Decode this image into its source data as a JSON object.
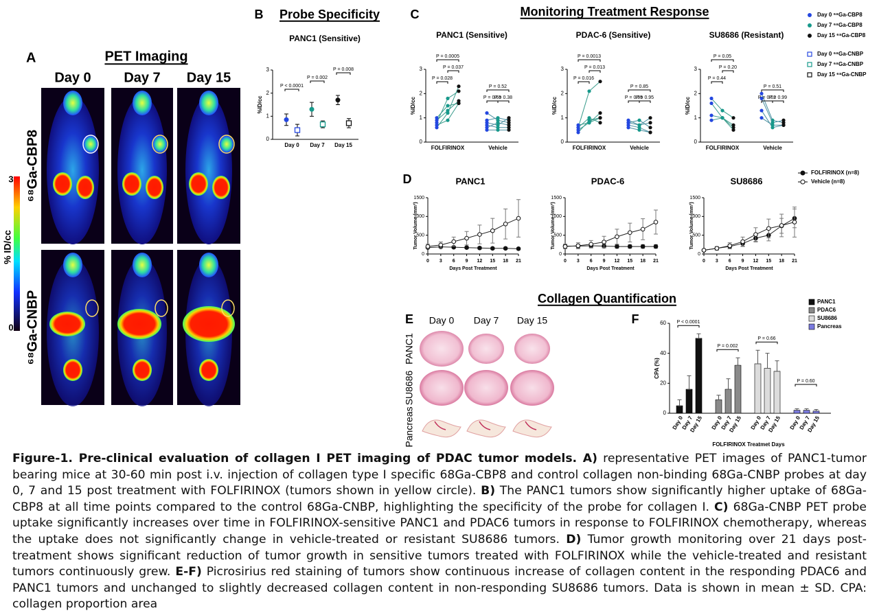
{
  "panel_a": {
    "label": "A",
    "title": "PET Imaging",
    "columns": [
      "Day 0",
      "Day 7",
      "Day 15"
    ],
    "rows": [
      "⁶⁸Ga-CBP8",
      "⁶⁸Ga-CNBP"
    ],
    "colorbar": {
      "label": "% ID/cc",
      "ticks": [
        3,
        0
      ]
    }
  },
  "panel_b": {
    "label": "B",
    "title": "Probe Specificity",
    "chart_data": {
      "type": "dot",
      "subtitle": "PANC1 (Sensitive)",
      "y_label": "%ID/cc",
      "categories": [
        "Day 0",
        "Day 7",
        "Day 15"
      ],
      "colors": [
        "#2447e0",
        "#17998b",
        "#111111"
      ],
      "ylim": [
        0,
        3
      ],
      "yticks": [
        0,
        1,
        2,
        3
      ],
      "series": [
        {
          "marker": "circle",
          "values": [
            0.85,
            1.3,
            1.7
          ],
          "errors": [
            0.25,
            0.3,
            0.2
          ]
        },
        {
          "marker": "square",
          "values": [
            0.4,
            0.65,
            0.7
          ],
          "errors": [
            0.25,
            0.15,
            0.2
          ]
        }
      ],
      "annotations": [
        "P < 0.0001",
        "P = 0.002",
        "P = 0.008"
      ]
    }
  },
  "panel_c": {
    "label": "C",
    "title": "Monitoring Treatment Response",
    "legend": [
      {
        "text": "Day 0 ⁶⁸Ga-CBP8",
        "marker": "circle",
        "color": "#2447e0"
      },
      {
        "text": "Day 7 ⁶⁸Ga-CBP8",
        "marker": "circle",
        "color": "#17998b"
      },
      {
        "text": "Day 15 ⁶⁸Ga-CBP8",
        "marker": "circle",
        "color": "#111111"
      },
      {
        "text": "Day 0 ⁶⁸Ga-CNBP",
        "marker": "square",
        "color": "#2447e0"
      },
      {
        "text": "Day 7 ⁶⁸Ga-CNBP",
        "marker": "square",
        "color": "#17998b"
      },
      {
        "text": "Day 15 ⁶⁸Ga-CNBP",
        "marker": "square",
        "color": "#111111"
      }
    ],
    "charts": [
      {
        "type": "paired",
        "title": "PANC1 (Sensitive)",
        "y_label": "%ID/cc",
        "ylim": [
          0,
          3
        ],
        "yticks": [
          0,
          1,
          2,
          3
        ],
        "categories": [
          "FOLFIRINOX",
          "Vehicle"
        ],
        "groups": [
          [
            [
              0.6,
              1.2,
              2.3
            ],
            [
              0.8,
              1.8,
              2.1
            ],
            [
              0.9,
              1.3,
              1.7
            ],
            [
              1.0,
              1.5,
              1.6
            ],
            [
              0.7,
              0.9,
              1.6
            ]
          ],
          [
            [
              1.2,
              0.9,
              0.8
            ],
            [
              0.9,
              1.0,
              0.9
            ],
            [
              0.7,
              0.6,
              0.6
            ],
            [
              0.6,
              0.8,
              0.7
            ],
            [
              0.5,
              0.5,
              0.5
            ],
            [
              0.8,
              0.7,
              1.0
            ]
          ]
        ],
        "annotations": [
          "P = 0.0005",
          "P = 0.037",
          "P = 0.028",
          "P = 0.52",
          "P = 0.65",
          "P = 0.38"
        ]
      },
      {
        "type": "paired",
        "title": "PDAC-6 (Sensitive)",
        "y_label": "%ID/cc",
        "ylim": [
          0,
          3
        ],
        "yticks": [
          0,
          1,
          2,
          3
        ],
        "categories": [
          "FOLFIRINOX",
          "Vehicle"
        ],
        "groups": [
          [
            [
              0.4,
              0.9,
              1.0
            ],
            [
              0.6,
              2.1,
              2.5
            ],
            [
              0.5,
              0.8,
              1.2
            ],
            [
              0.7,
              0.8,
              1.0
            ],
            [
              0.6,
              1.0,
              0.8
            ]
          ],
          [
            [
              0.8,
              0.7,
              1.0
            ],
            [
              0.7,
              0.6,
              0.4
            ],
            [
              0.9,
              0.7,
              0.8
            ],
            [
              0.6,
              0.5,
              0.4
            ],
            [
              0.8,
              0.9,
              0.6
            ]
          ]
        ],
        "annotations": [
          "P = 0.0013",
          "P = 0.013",
          "P = 0.016",
          "P = 0.85",
          "P = 0.95",
          "P = 0.95"
        ]
      },
      {
        "type": "paired",
        "title": "SU8686 (Resistant)",
        "y_label": "%ID/cc",
        "ylim": [
          0,
          3
        ],
        "yticks": [
          0,
          1,
          2,
          3
        ],
        "categories": [
          "FOLFIRINOX",
          "Vehicle"
        ],
        "groups": [
          [
            [
              1.8,
              1.3,
              1.0
            ],
            [
              1.6,
              1.0,
              0.7
            ],
            [
              1.1,
              1.0,
              0.6
            ],
            [
              0.9,
              1.0,
              0.5
            ]
          ],
          [
            [
              2.0,
              0.9,
              0.8
            ],
            [
              1.8,
              0.8,
              0.9
            ],
            [
              1.3,
              0.6,
              0.7
            ],
            [
              1.0,
              0.7,
              0.7
            ]
          ]
        ],
        "annotations": [
          "P = 0.05",
          "P = 0.20",
          "P = 0.44",
          "P = 0.51",
          "P = 0.02",
          "P = 0.99"
        ]
      }
    ]
  },
  "panel_d": {
    "label": "D",
    "legend": [
      {
        "text": "FOLFIRINOX (n=8)",
        "filled": true
      },
      {
        "text": "Vehicle (n=8)",
        "filled": false
      }
    ],
    "charts": [
      {
        "type": "line",
        "title": "PANC1",
        "x_label": "Days Post Treatment",
        "y_label": "Tumor Volume (mm³)",
        "x": [
          0,
          3,
          6,
          9,
          12,
          15,
          18,
          21
        ],
        "xlim": [
          0,
          21
        ],
        "xticks": [
          0,
          3,
          6,
          9,
          12,
          15,
          18,
          21
        ],
        "ylim": [
          0,
          1500
        ],
        "yticks": [
          0,
          500,
          1000,
          1500
        ],
        "series": [
          {
            "values": [
              170,
              190,
              180,
              170,
              160,
              150,
              150,
              140
            ],
            "errors": [
              30,
              30,
              30,
              30,
              30,
              30,
              30,
              30
            ]
          },
          {
            "values": [
              200,
              240,
              330,
              420,
              520,
              620,
              800,
              950
            ],
            "errors": [
              60,
              80,
              120,
              180,
              250,
              330,
              400,
              500
            ]
          }
        ]
      },
      {
        "type": "line",
        "title": "PDAC-6",
        "x_label": "Days Post Treatment",
        "y_label": "Tumor Volume (mm³)",
        "x": [
          0,
          3,
          6,
          9,
          12,
          15,
          18,
          21
        ],
        "xlim": [
          0,
          21
        ],
        "xticks": [
          0,
          3,
          6,
          9,
          12,
          15,
          18,
          21
        ],
        "ylim": [
          0,
          1500
        ],
        "yticks": [
          0,
          500,
          1000,
          1500
        ],
        "series": [
          {
            "values": [
              210,
              210,
              220,
              210,
              200,
              200,
              200,
              200
            ],
            "errors": [
              50,
              50,
              50,
              50,
              50,
              50,
              50,
              50
            ]
          },
          {
            "values": [
              200,
              220,
              260,
              320,
              460,
              570,
              660,
              850
            ],
            "errors": [
              60,
              80,
              100,
              150,
              200,
              250,
              280,
              320
            ]
          }
        ]
      },
      {
        "type": "line",
        "title": "SU8686",
        "x_label": "Days Post Treatment",
        "y_label": "Tumor Volume (mm³)",
        "x": [
          0,
          3,
          6,
          9,
          12,
          15,
          18,
          21
        ],
        "xlim": [
          0,
          21
        ],
        "xticks": [
          0,
          3,
          6,
          9,
          12,
          15,
          18,
          21
        ],
        "ylim": [
          0,
          1500
        ],
        "yticks": [
          0,
          500,
          1000,
          1500
        ],
        "series": [
          {
            "values": [
              100,
              150,
              200,
              280,
              420,
              500,
              750,
              950
            ],
            "errors": [
              30,
              40,
              60,
              80,
              100,
              150,
              200,
              250
            ]
          },
          {
            "values": [
              100,
              150,
              220,
              330,
              520,
              680,
              760,
              850
            ],
            "errors": [
              30,
              50,
              80,
              120,
              180,
              250,
              300,
              400
            ]
          }
        ]
      }
    ]
  },
  "collagen_title": "Collagen Quantification",
  "panel_e": {
    "label": "E",
    "columns": [
      "Day 0",
      "Day 7",
      "Day 15"
    ],
    "rows": [
      "PANC1",
      "SU8686",
      "Pancreas"
    ]
  },
  "panel_f": {
    "label": "F",
    "chart_data": {
      "type": "grouped-bar",
      "y_label": "CPA (%)",
      "x_label": "FOLFIRINOX Treatmet Days",
      "categories": [
        "Day 0",
        "Day 7",
        "Day 15"
      ],
      "ylim": [
        0,
        60
      ],
      "yticks": [
        0,
        20,
        40,
        60
      ],
      "series": [
        {
          "name": "PANC1",
          "color": "#111111",
          "values": [
            5,
            16,
            50
          ],
          "errors": [
            4,
            9,
            3
          ]
        },
        {
          "name": "PDAC6",
          "color": "#8a8a8a",
          "values": [
            9,
            16,
            32
          ],
          "errors": [
            3,
            7,
            5
          ]
        },
        {
          "name": "SU8686",
          "color": "#dcdcdc",
          "values": [
            33,
            30,
            28
          ],
          "errors": [
            9,
            10,
            7
          ]
        },
        {
          "name": "Pancreas",
          "color": "#7b7be0",
          "values": [
            2,
            2,
            1.5
          ],
          "errors": [
            1,
            1,
            1
          ]
        }
      ],
      "annotations": [
        "P < 0.0001",
        "P = 0.002",
        "P = 0.66",
        "P = 0.60"
      ]
    }
  },
  "caption": {
    "segments": [
      {
        "text": "Figure-1. Pre-clinical evaluation of collagen I PET imaging of PDAC tumor models. A)",
        "bold": true
      },
      {
        "text": " representative PET images of PANC1-tumor bearing mice at 30-60 min post i.v. injection of collagen type I specific 68Ga-CBP8 and control collagen non-binding 68Ga-CNBP probes at day 0, 7 and 15 post treatment with FOLFIRINOX (tumors shown in yellow circle). ",
        "bold": false
      },
      {
        "text": "B)",
        "bold": true
      },
      {
        "text": " The PANC1 tumors show significantly higher uptake of 68Ga-CBP8 at all time points compared to the control 68Ga-CNBP, highlighting the specificity of the probe for collagen I. ",
        "bold": false
      },
      {
        "text": "C)",
        "bold": true
      },
      {
        "text": " 68Ga-CNBP PET probe uptake significantly increases over time in FOLFIRINOX-sensitive PANC1 and PDAC6 tumors in response to FOLFIRINOX chemotherapy, whereas the uptake does not significantly change in vehicle-treated or resistant SU8686 tumors. ",
        "bold": false
      },
      {
        "text": "D)",
        "bold": true
      },
      {
        "text": " Tumor growth monitoring over 21 days post-treatment shows significant reduction of tumor growth in sensitive tumors treated with FOLFIRINOX while the vehicle-treated and resistant tumors continuously grew. ",
        "bold": false
      },
      {
        "text": "E-F)",
        "bold": true
      },
      {
        "text": " Picrosirius red staining of tumors show continuous increase of collagen content in the responding PDAC6 and PANC1 tumors and unchanged to slightly decreased collagen content in non-responding SU8686 tumors. Data is shown in mean ± SD. CPA: collagen proportion area",
        "bold": false
      }
    ]
  }
}
